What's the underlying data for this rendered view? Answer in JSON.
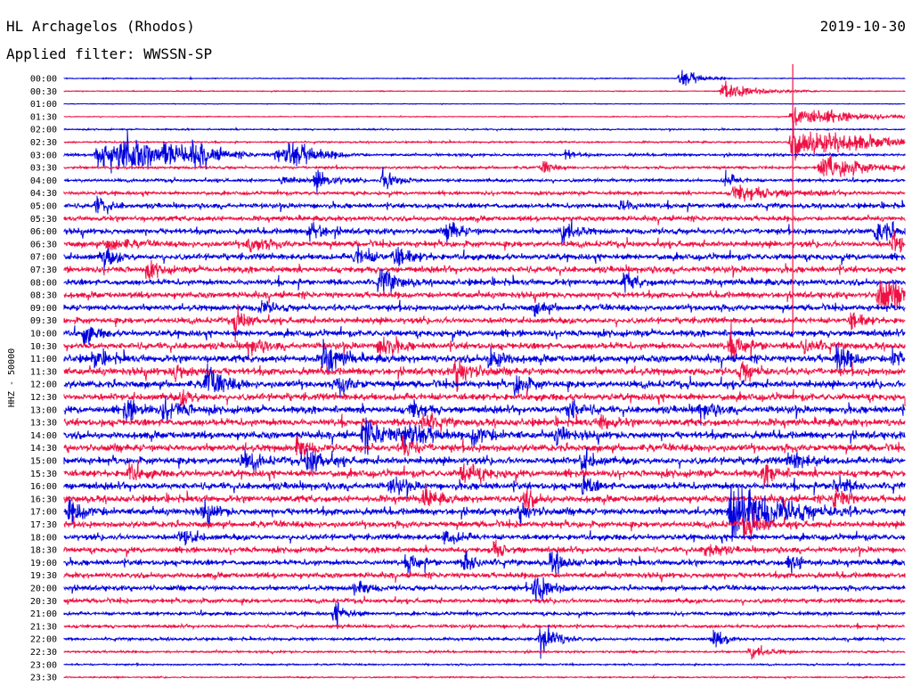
{
  "header": {
    "station": "HL Archagelos (Rhodos)",
    "filter": "Applied filter: WWSSN-SP",
    "date": "2019-10-30"
  },
  "chart_data": {
    "type": "line",
    "title": "HL Archagelos (Rhodos)",
    "subtitle": "Applied filter: WWSSN-SP",
    "ylabel": "HHZ - 50000",
    "date": "2019-10-30",
    "row_interval_minutes": 30,
    "colors": {
      "even": "#0000dd",
      "odd": "#ee1144"
    },
    "rows": [
      "00:00",
      "00:30",
      "01:00",
      "01:30",
      "02:00",
      "02:30",
      "03:00",
      "03:30",
      "04:00",
      "04:30",
      "05:00",
      "05:30",
      "06:00",
      "06:30",
      "07:00",
      "07:30",
      "08:00",
      "08:30",
      "09:00",
      "09:30",
      "10:00",
      "10:30",
      "11:00",
      "11:30",
      "12:00",
      "12:30",
      "13:00",
      "13:30",
      "14:00",
      "14:30",
      "15:00",
      "15:30",
      "16:00",
      "16:30",
      "17:00",
      "17:30",
      "18:00",
      "18:30",
      "19:00",
      "19:30",
      "20:00",
      "20:30",
      "21:00",
      "21:30",
      "22:00",
      "22:30",
      "23:00",
      "23:30"
    ],
    "noise": [
      0.3,
      0.3,
      0.2,
      0.3,
      0.5,
      0.6,
      1.0,
      1.0,
      1.2,
      1.4,
      2.0,
      2.0,
      2.3,
      2.5,
      2.6,
      2.6,
      2.5,
      2.5,
      2.5,
      2.5,
      2.7,
      2.8,
      3.0,
      3.0,
      3.0,
      3.0,
      3.0,
      3.0,
      3.0,
      3.0,
      3.0,
      3.0,
      2.9,
      2.8,
      2.8,
      2.6,
      2.4,
      2.3,
      2.3,
      2.2,
      2.0,
      1.8,
      1.4,
      1.2,
      1.0,
      0.8,
      0.6,
      0.5
    ],
    "events": [
      {
        "row": 0,
        "minute": 22.0,
        "amp": 9,
        "dur": 0.6
      },
      {
        "row": 1,
        "minute": 23.5,
        "amp": 8,
        "dur": 1.2
      },
      {
        "row": 3,
        "minute": 26.0,
        "amp": 10,
        "dur": 2.0
      },
      {
        "row": 5,
        "minute": 26.0,
        "amp": 16,
        "dur": 2.5
      },
      {
        "row": 6,
        "minute": 1.2,
        "amp": 16,
        "dur": 1.5
      },
      {
        "row": 6,
        "minute": 2.0,
        "amp": 12,
        "dur": 1.2
      },
      {
        "row": 6,
        "minute": 3.6,
        "amp": 7,
        "dur": 1.0
      },
      {
        "row": 6,
        "minute": 4.6,
        "amp": 6,
        "dur": 1.2
      },
      {
        "row": 6,
        "minute": 7.6,
        "amp": 8,
        "dur": 0.8
      },
      {
        "row": 6,
        "minute": 8.0,
        "amp": 9,
        "dur": 1.0
      },
      {
        "row": 6,
        "minute": 17.9,
        "amp": 6,
        "dur": 0.3
      },
      {
        "row": 7,
        "minute": 17.1,
        "amp": 7,
        "dur": 0.3
      },
      {
        "row": 7,
        "minute": 27.0,
        "amp": 14,
        "dur": 1.2
      },
      {
        "row": 8,
        "minute": 7.8,
        "amp": 5,
        "dur": 0.4
      },
      {
        "row": 8,
        "minute": 9.0,
        "amp": 9,
        "dur": 0.6
      },
      {
        "row": 8,
        "minute": 11.4,
        "amp": 12,
        "dur": 0.5
      },
      {
        "row": 8,
        "minute": 23.6,
        "amp": 7,
        "dur": 0.4
      },
      {
        "row": 9,
        "minute": 23.9,
        "amp": 8,
        "dur": 1.5
      },
      {
        "row": 10,
        "minute": 1.2,
        "amp": 8,
        "dur": 0.4
      },
      {
        "row": 10,
        "minute": 19.9,
        "amp": 7,
        "dur": 0.4
      },
      {
        "row": 12,
        "minute": 8.8,
        "amp": 10,
        "dur": 0.4
      },
      {
        "row": 12,
        "minute": 13.7,
        "amp": 11,
        "dur": 0.4
      },
      {
        "row": 12,
        "minute": 17.8,
        "amp": 12,
        "dur": 0.4
      },
      {
        "row": 12,
        "minute": 29.0,
        "amp": 13,
        "dur": 0.5
      },
      {
        "row": 13,
        "minute": 1.6,
        "amp": 9,
        "dur": 0.5
      },
      {
        "row": 13,
        "minute": 6.6,
        "amp": 9,
        "dur": 0.5
      },
      {
        "row": 13,
        "minute": 29.6,
        "amp": 12,
        "dur": 0.4
      },
      {
        "row": 14,
        "minute": 1.4,
        "amp": 10,
        "dur": 0.4
      },
      {
        "row": 14,
        "minute": 10.4,
        "amp": 10,
        "dur": 0.5
      },
      {
        "row": 14,
        "minute": 11.8,
        "amp": 10,
        "dur": 0.5
      },
      {
        "row": 15,
        "minute": 3.0,
        "amp": 8,
        "dur": 0.4
      },
      {
        "row": 16,
        "minute": 11.3,
        "amp": 12,
        "dur": 0.5
      },
      {
        "row": 16,
        "minute": 20.0,
        "amp": 9,
        "dur": 0.4
      },
      {
        "row": 17,
        "minute": 29.1,
        "amp": 16,
        "dur": 1.2
      },
      {
        "row": 18,
        "minute": 7.0,
        "amp": 7,
        "dur": 0.4
      },
      {
        "row": 18,
        "minute": 16.8,
        "amp": 6,
        "dur": 0.4
      },
      {
        "row": 19,
        "minute": 6.1,
        "amp": 12,
        "dur": 0.4
      },
      {
        "row": 19,
        "minute": 28.1,
        "amp": 8,
        "dur": 0.4
      },
      {
        "row": 20,
        "minute": 0.7,
        "amp": 10,
        "dur": 0.4
      },
      {
        "row": 21,
        "minute": 6.6,
        "amp": 9,
        "dur": 0.4
      },
      {
        "row": 21,
        "minute": 11.3,
        "amp": 14,
        "dur": 0.4
      },
      {
        "row": 21,
        "minute": 23.8,
        "amp": 13,
        "dur": 0.5
      },
      {
        "row": 21,
        "minute": 26.4,
        "amp": 9,
        "dur": 0.4
      },
      {
        "row": 22,
        "minute": 1.1,
        "amp": 9,
        "dur": 0.4
      },
      {
        "row": 22,
        "minute": 9.3,
        "amp": 16,
        "dur": 0.5
      },
      {
        "row": 22,
        "minute": 15.2,
        "amp": 12,
        "dur": 0.4
      },
      {
        "row": 22,
        "minute": 27.6,
        "amp": 13,
        "dur": 0.4
      },
      {
        "row": 22,
        "minute": 29.6,
        "amp": 11,
        "dur": 0.4
      },
      {
        "row": 23,
        "minute": 3.9,
        "amp": 10,
        "dur": 0.4
      },
      {
        "row": 23,
        "minute": 14.0,
        "amp": 14,
        "dur": 0.5
      },
      {
        "row": 23,
        "minute": 24.2,
        "amp": 10,
        "dur": 0.4
      },
      {
        "row": 24,
        "minute": 5.1,
        "amp": 16,
        "dur": 0.5
      },
      {
        "row": 24,
        "minute": 9.8,
        "amp": 9,
        "dur": 0.4
      },
      {
        "row": 24,
        "minute": 16.1,
        "amp": 10,
        "dur": 0.4
      },
      {
        "row": 25,
        "minute": 4.2,
        "amp": 7,
        "dur": 0.4
      },
      {
        "row": 26,
        "minute": 2.2,
        "amp": 10,
        "dur": 0.5
      },
      {
        "row": 26,
        "minute": 3.6,
        "amp": 11,
        "dur": 0.6
      },
      {
        "row": 26,
        "minute": 12.4,
        "amp": 9,
        "dur": 0.4
      },
      {
        "row": 26,
        "minute": 18.0,
        "amp": 11,
        "dur": 0.4
      },
      {
        "row": 26,
        "minute": 22.7,
        "amp": 9,
        "dur": 0.4
      },
      {
        "row": 27,
        "minute": 12.8,
        "amp": 10,
        "dur": 0.4
      },
      {
        "row": 27,
        "minute": 19.2,
        "amp": 7,
        "dur": 0.4
      },
      {
        "row": 28,
        "minute": 10.7,
        "amp": 13,
        "dur": 1.0
      },
      {
        "row": 28,
        "minute": 12.2,
        "amp": 12,
        "dur": 0.6
      },
      {
        "row": 28,
        "minute": 14.6,
        "amp": 10,
        "dur": 0.6
      },
      {
        "row": 28,
        "minute": 17.6,
        "amp": 9,
        "dur": 0.4
      },
      {
        "row": 29,
        "minute": 8.3,
        "amp": 10,
        "dur": 0.4
      },
      {
        "row": 29,
        "minute": 12.1,
        "amp": 9,
        "dur": 0.4
      },
      {
        "row": 30,
        "minute": 6.4,
        "amp": 9,
        "dur": 0.5
      },
      {
        "row": 30,
        "minute": 8.7,
        "amp": 14,
        "dur": 0.5
      },
      {
        "row": 30,
        "minute": 18.5,
        "amp": 10,
        "dur": 0.4
      },
      {
        "row": 30,
        "minute": 25.9,
        "amp": 8,
        "dur": 0.6
      },
      {
        "row": 31,
        "minute": 2.3,
        "amp": 9,
        "dur": 0.4
      },
      {
        "row": 31,
        "minute": 14.2,
        "amp": 12,
        "dur": 0.6
      },
      {
        "row": 31,
        "minute": 25.0,
        "amp": 10,
        "dur": 0.4
      },
      {
        "row": 32,
        "minute": 11.7,
        "amp": 10,
        "dur": 0.4
      },
      {
        "row": 32,
        "minute": 18.5,
        "amp": 9,
        "dur": 0.4
      },
      {
        "row": 32,
        "minute": 27.5,
        "amp": 10,
        "dur": 0.4
      },
      {
        "row": 33,
        "minute": 12.8,
        "amp": 12,
        "dur": 0.4
      },
      {
        "row": 33,
        "minute": 16.4,
        "amp": 10,
        "dur": 0.4
      },
      {
        "row": 33,
        "minute": 27.5,
        "amp": 12,
        "dur": 0.4
      },
      {
        "row": 34,
        "minute": 0.2,
        "amp": 10,
        "dur": 0.6
      },
      {
        "row": 34,
        "minute": 5.0,
        "amp": 9,
        "dur": 0.4
      },
      {
        "row": 34,
        "minute": 16.3,
        "amp": 9,
        "dur": 0.4
      },
      {
        "row": 34,
        "minute": 23.8,
        "amp": 30,
        "dur": 1.5
      },
      {
        "row": 35,
        "minute": 24.3,
        "amp": 12,
        "dur": 0.6
      },
      {
        "row": 36,
        "minute": 4.2,
        "amp": 9,
        "dur": 0.4
      },
      {
        "row": 36,
        "minute": 13.6,
        "amp": 10,
        "dur": 0.4
      },
      {
        "row": 37,
        "minute": 15.3,
        "amp": 9,
        "dur": 0.4
      },
      {
        "row": 37,
        "minute": 22.9,
        "amp": 9,
        "dur": 0.4
      },
      {
        "row": 38,
        "minute": 12.3,
        "amp": 10,
        "dur": 0.4
      },
      {
        "row": 38,
        "minute": 14.3,
        "amp": 10,
        "dur": 0.4
      },
      {
        "row": 38,
        "minute": 17.4,
        "amp": 12,
        "dur": 0.4
      },
      {
        "row": 38,
        "minute": 25.9,
        "amp": 10,
        "dur": 0.4
      },
      {
        "row": 40,
        "minute": 16.8,
        "amp": 14,
        "dur": 0.5
      },
      {
        "row": 40,
        "minute": 10.4,
        "amp": 8,
        "dur": 0.4
      },
      {
        "row": 42,
        "minute": 9.7,
        "amp": 12,
        "dur": 0.4
      },
      {
        "row": 44,
        "minute": 17.0,
        "amp": 18,
        "dur": 0.5
      },
      {
        "row": 44,
        "minute": 23.2,
        "amp": 9,
        "dur": 0.4
      },
      {
        "row": 45,
        "minute": 24.5,
        "amp": 7,
        "dur": 0.6
      }
    ],
    "spike": {
      "minute": 26.0,
      "from_row": 0,
      "to_row": 20
    }
  }
}
